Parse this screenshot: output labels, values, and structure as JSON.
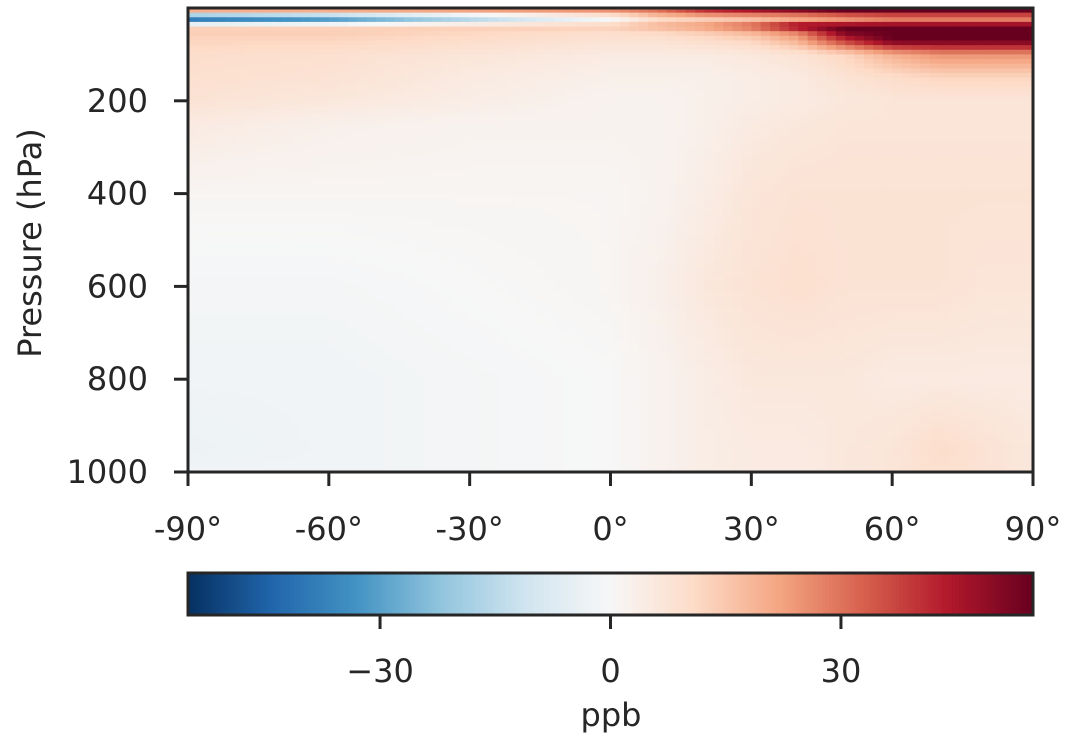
{
  "chart_data": {
    "type": "heatmap",
    "title": "",
    "xlabel": "",
    "ylabel": "Pressure (hPa)",
    "x_ticks": [
      "-90°",
      "-60°",
      "-30°",
      "0°",
      "30°",
      "60°",
      "90°"
    ],
    "x_tick_values": [
      -90,
      -60,
      -30,
      0,
      30,
      60,
      90
    ],
    "y_ticks": [
      "200",
      "400",
      "600",
      "800",
      "1000"
    ],
    "y_tick_values": [
      200,
      400,
      600,
      800,
      1000
    ],
    "xlim": [
      -90,
      90
    ],
    "ylim": [
      1000,
      0
    ],
    "colormap": "RdBu_r",
    "colorbar": {
      "label": "ppb",
      "range": [
        -55,
        55
      ],
      "ticks": [
        "−30",
        "0",
        "30"
      ],
      "tick_values": [
        -30,
        0,
        30
      ],
      "orientation": "horizontal"
    },
    "latitudes": [
      -90,
      -60,
      -30,
      0,
      10,
      20,
      30,
      40,
      50,
      60,
      70,
      80,
      90
    ],
    "levels": [
      10,
      20,
      40,
      50,
      70,
      100,
      150,
      200,
      250,
      400,
      600,
      800,
      950,
      1000
    ],
    "values": [
      [
        20,
        20,
        22,
        25,
        30,
        40,
        45,
        50,
        55,
        55,
        55,
        55,
        55
      ],
      [
        -55,
        -45,
        -25,
        -5,
        8,
        10,
        10,
        10,
        15,
        20,
        20,
        20,
        20
      ],
      [
        12,
        12,
        14,
        15,
        20,
        25,
        35,
        55,
        55,
        55,
        55,
        55,
        55
      ],
      [
        14,
        14,
        12,
        10,
        12,
        15,
        20,
        30,
        55,
        55,
        55,
        55,
        55
      ],
      [
        12,
        12,
        10,
        8,
        8,
        10,
        12,
        20,
        40,
        55,
        55,
        55,
        55
      ],
      [
        10,
        9,
        7,
        5,
        5,
        5,
        6,
        8,
        12,
        20,
        25,
        25,
        25
      ],
      [
        9,
        8,
        5,
        3,
        3,
        3,
        4,
        5,
        8,
        10,
        12,
        12,
        12
      ],
      [
        8,
        6,
        4,
        2,
        2,
        3,
        4,
        5,
        6,
        7,
        7,
        7,
        7
      ],
      [
        5,
        3,
        2,
        2,
        2,
        3,
        5,
        6,
        7,
        7,
        7,
        7,
        7
      ],
      [
        1,
        1,
        1,
        1,
        2,
        4,
        7,
        8,
        8,
        8,
        8,
        8,
        8
      ],
      [
        -1,
        -1,
        0,
        1,
        3,
        6,
        8,
        9,
        8,
        8,
        8,
        7,
        7
      ],
      [
        -2,
        -2,
        -1,
        0,
        2,
        4,
        6,
        6,
        6,
        5,
        5,
        5,
        5
      ],
      [
        -3,
        -2,
        -1,
        0,
        2,
        4,
        5,
        5,
        6,
        7,
        10,
        8,
        6
      ],
      [
        -2,
        -2,
        -1,
        0,
        2,
        4,
        5,
        5,
        6,
        7,
        9,
        8,
        6
      ]
    ]
  }
}
